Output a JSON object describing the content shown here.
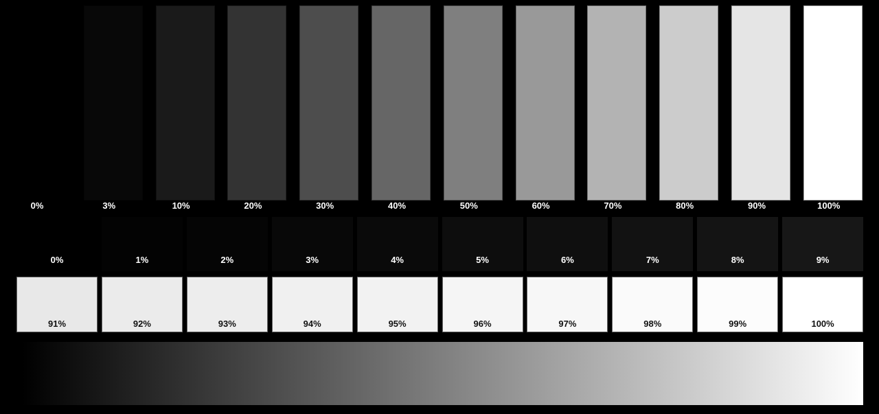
{
  "top_row": {
    "levels": [
      0,
      3,
      10,
      20,
      30,
      40,
      50,
      60,
      70,
      80,
      90,
      100
    ],
    "labels": [
      "0%",
      "3%",
      "10%",
      "20%",
      "30%",
      "40%",
      "50%",
      "60%",
      "70%",
      "80%",
      "90%",
      "100%"
    ]
  },
  "near_black_row": {
    "levels": [
      0,
      1,
      2,
      3,
      4,
      5,
      6,
      7,
      8,
      9
    ],
    "labels": [
      "0%",
      "1%",
      "2%",
      "3%",
      "4%",
      "5%",
      "6%",
      "7%",
      "8%",
      "9%"
    ]
  },
  "near_white_row": {
    "levels": [
      91,
      92,
      93,
      94,
      95,
      96,
      97,
      98,
      99,
      100
    ],
    "labels": [
      "91%",
      "92%",
      "93%",
      "94%",
      "95%",
      "96%",
      "97%",
      "98%",
      "99%",
      "100%"
    ]
  },
  "gradient": {
    "from": "#000000",
    "to": "#ffffff"
  }
}
